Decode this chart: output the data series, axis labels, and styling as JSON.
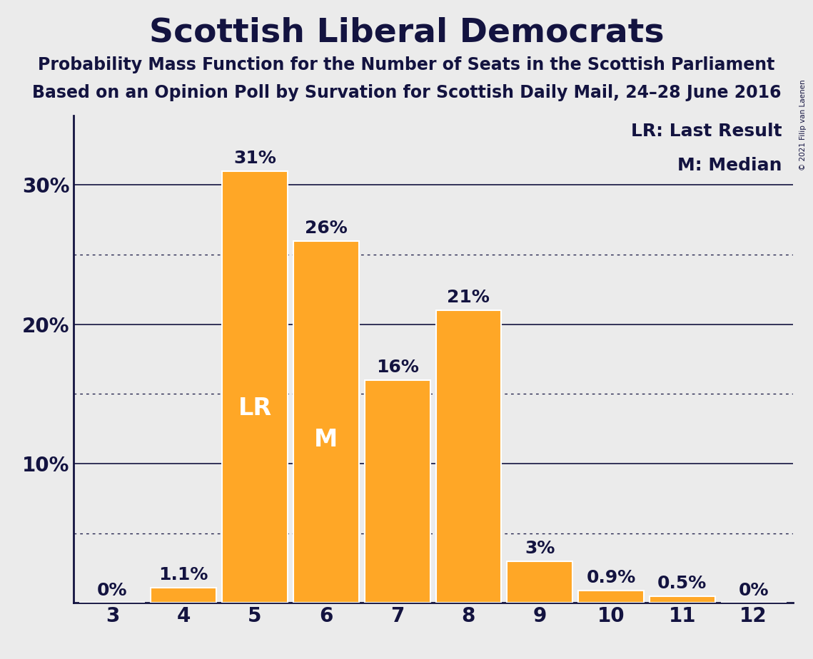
{
  "title": "Scottish Liberal Democrats",
  "subtitle1": "Probability Mass Function for the Number of Seats in the Scottish Parliament",
  "subtitle2": "Based on an Opinion Poll by Survation for Scottish Daily Mail, 24–28 June 2016",
  "copyright": "© 2021 Filip van Laenen",
  "categories": [
    3,
    4,
    5,
    6,
    7,
    8,
    9,
    10,
    11,
    12
  ],
  "values": [
    0.0,
    1.1,
    31.0,
    26.0,
    16.0,
    21.0,
    3.0,
    0.9,
    0.5,
    0.0
  ],
  "labels": [
    "0%",
    "1.1%",
    "31%",
    "26%",
    "16%",
    "21%",
    "3%",
    "0.9%",
    "0.5%",
    "0%"
  ],
  "bar_color": "#FFA726",
  "bar_edge_color": "#FFFFFF",
  "background_color": "#EBEBEB",
  "text_color": "#131340",
  "lr_bar": 5,
  "median_bar": 6,
  "lr_label": "LR",
  "median_label": "M",
  "legend_lr": "LR: Last Result",
  "legend_m": "M: Median",
  "ylim": [
    0,
    35
  ],
  "yticks": [
    10,
    20,
    30
  ],
  "ytick_labels": [
    "10%",
    "20%",
    "30%"
  ],
  "dotted_lines": [
    5,
    15,
    25
  ],
  "solid_lines": [
    10,
    20,
    30
  ],
  "title_fontsize": 34,
  "subtitle_fontsize": 17,
  "axis_tick_fontsize": 20,
  "bar_label_fontsize": 18,
  "bar_inner_label_fontsize": 24,
  "legend_fontsize": 18
}
